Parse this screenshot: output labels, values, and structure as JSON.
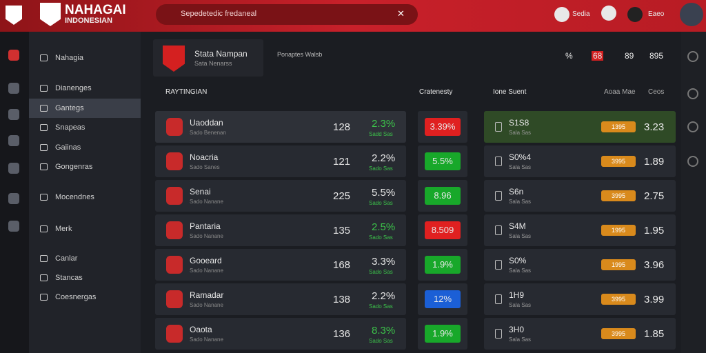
{
  "header": {
    "logo_title": "NAHAGAI",
    "logo_subtitle": "INDONESIAN",
    "search": "Sepedetedic fredaneal",
    "user_items": [
      "Sedia",
      "Eaeo"
    ]
  },
  "sidebar": {
    "items": [
      "Nahagia",
      "Dianenges",
      "Gantegs",
      "Snapeas",
      "Gaiinas",
      "Gongenras",
      "Mocendnes",
      "Merk",
      "Canlar",
      "Stancas",
      "Coesnergas"
    ]
  },
  "match": {
    "title": "Stata Nampan",
    "subtitle": "Sata Nenarss",
    "link": "Ponaptes Walsb",
    "stats": [
      "%",
      "68",
      "89",
      "895"
    ]
  },
  "columns": {
    "ranking": "RAYTINGIAN",
    "category": "Cratenesty",
    "right": "Ione Suent",
    "right_sub": "Aoaa Mae",
    "right_end": "Ceos"
  },
  "rows": [
    {
      "name": "Uaoddan",
      "sub": "Sado Benenan",
      "num": "128",
      "pct": "2.3%",
      "pct_color": "#3cc24a",
      "pct_sub": "Sadd Sas",
      "badge": "3.39%",
      "badge_color": "#e02020",
      "code": "S1S8",
      "code_sub": "Sala Sas",
      "chip": "1395",
      "value": "3.23"
    },
    {
      "name": "Noacria",
      "sub": "Sado Sanes",
      "num": "121",
      "pct": "2.2%",
      "pct_color": "#e8e8e8",
      "pct_sub": "Sado Sas",
      "badge": "5.5%",
      "badge_color": "#18a82a",
      "code": "S0%4",
      "code_sub": "Sala Sas",
      "chip": "3995",
      "value": "1.89"
    },
    {
      "name": "Senai",
      "sub": "Sado Nanane",
      "num": "225",
      "pct": "5.5%",
      "pct_color": "#e8e8e8",
      "pct_sub": "Sado Sas",
      "badge": "8.96",
      "badge_color": "#18a82a",
      "code": "S6n",
      "code_sub": "Sala Sas",
      "chip": "3995",
      "value": "2.75"
    },
    {
      "name": "Pantaria",
      "sub": "Sado Nanane",
      "num": "135",
      "pct": "2.5%",
      "pct_color": "#3cc24a",
      "pct_sub": "Sado Sas",
      "badge": "8.509",
      "badge_color": "#e02020",
      "code": "S4M",
      "code_sub": "Sala Sas",
      "chip": "1995",
      "value": "1.95"
    },
    {
      "name": "Gooeard",
      "sub": "Sado Nanane",
      "num": "168",
      "pct": "3.3%",
      "pct_color": "#e8e8e8",
      "pct_sub": "Sado Sas",
      "badge": "1.9%",
      "badge_color": "#18a82a",
      "code": "S0%",
      "code_sub": "Sala Sas",
      "chip": "1995",
      "value": "3.96"
    },
    {
      "name": "Ramadar",
      "sub": "Sado Nanane",
      "num": "138",
      "pct": "2.2%",
      "pct_color": "#e8e8e8",
      "pct_sub": "Sado Sas",
      "badge": "12%",
      "badge_color": "#1b5fd6",
      "code": "1H9",
      "code_sub": "Sala Sas",
      "chip": "3995",
      "value": "3.99"
    },
    {
      "name": "Oaota",
      "sub": "Sado Nanane",
      "num": "136",
      "pct": "8.3%",
      "pct_color": "#3cc24a",
      "pct_sub": "Sado Sas",
      "badge": "1.9%",
      "badge_color": "#18a82a",
      "code": "3H0",
      "code_sub": "Sala Sas",
      "chip": "3995",
      "value": "1.85"
    }
  ]
}
